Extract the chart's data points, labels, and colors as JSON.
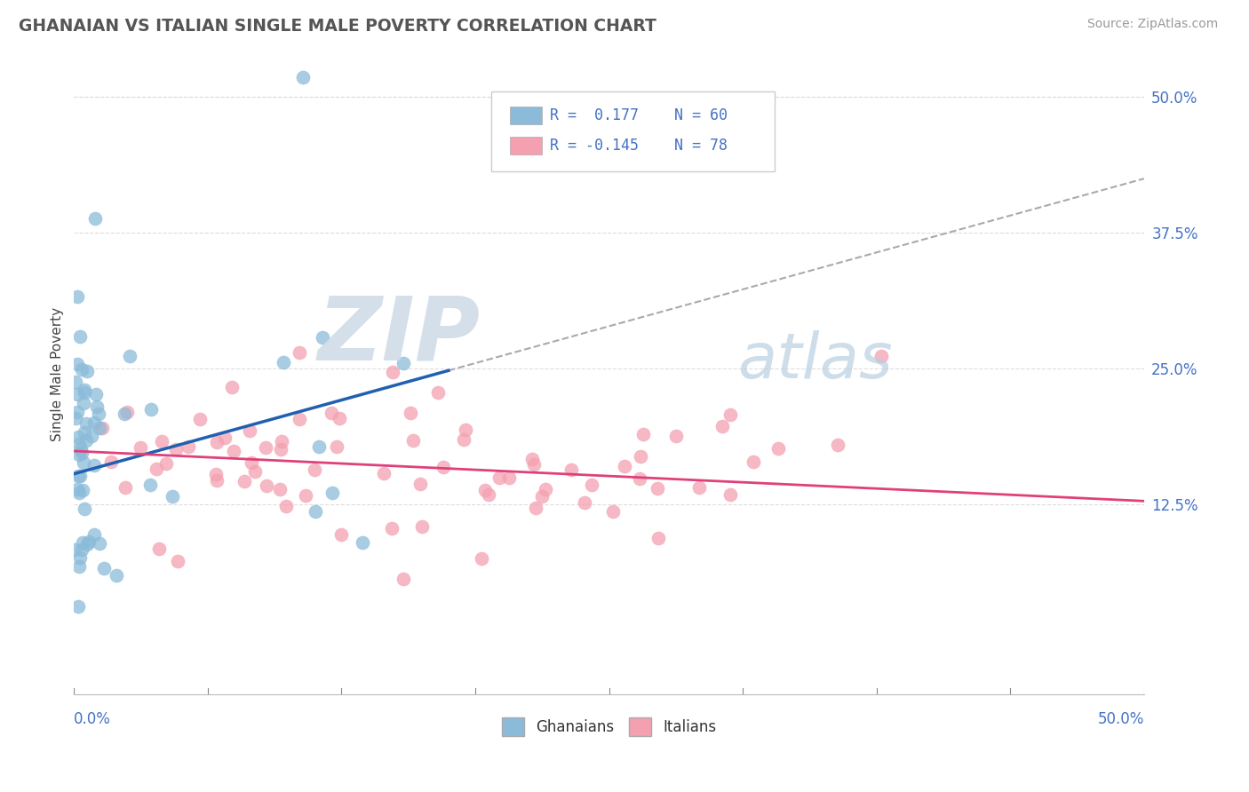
{
  "title": "GHANAIAN VS ITALIAN SINGLE MALE POVERTY CORRELATION CHART",
  "source_text": "Source: ZipAtlas.com",
  "ylabel": "Single Male Poverty",
  "right_yticks": [
    0.125,
    0.25,
    0.375,
    0.5
  ],
  "right_yticklabels": [
    "12.5%",
    "25.0%",
    "37.5%",
    "50.0%"
  ],
  "xlim": [
    0.0,
    0.5
  ],
  "ylim": [
    -0.05,
    0.54
  ],
  "ghanaian_color": "#8bbbd9",
  "italian_color": "#f4a0b0",
  "ghanaian_line_color": "#2060b0",
  "italian_line_color": "#e0407a",
  "dash_color": "#aaaaaa",
  "grid_color": "#dddddd",
  "watermark_zip": "ZIP",
  "watermark_atlas": "atlas",
  "watermark_color_zip": "#c5d8ea",
  "watermark_color_atlas": "#c5d8ea",
  "legend_label_blue": "Ghanaians",
  "legend_label_pink": "Italians",
  "title_color": "#555555",
  "source_color": "#999999",
  "ylabel_color": "#444444",
  "right_tick_color": "#4472c4",
  "xlabel_color": "#4472c4"
}
